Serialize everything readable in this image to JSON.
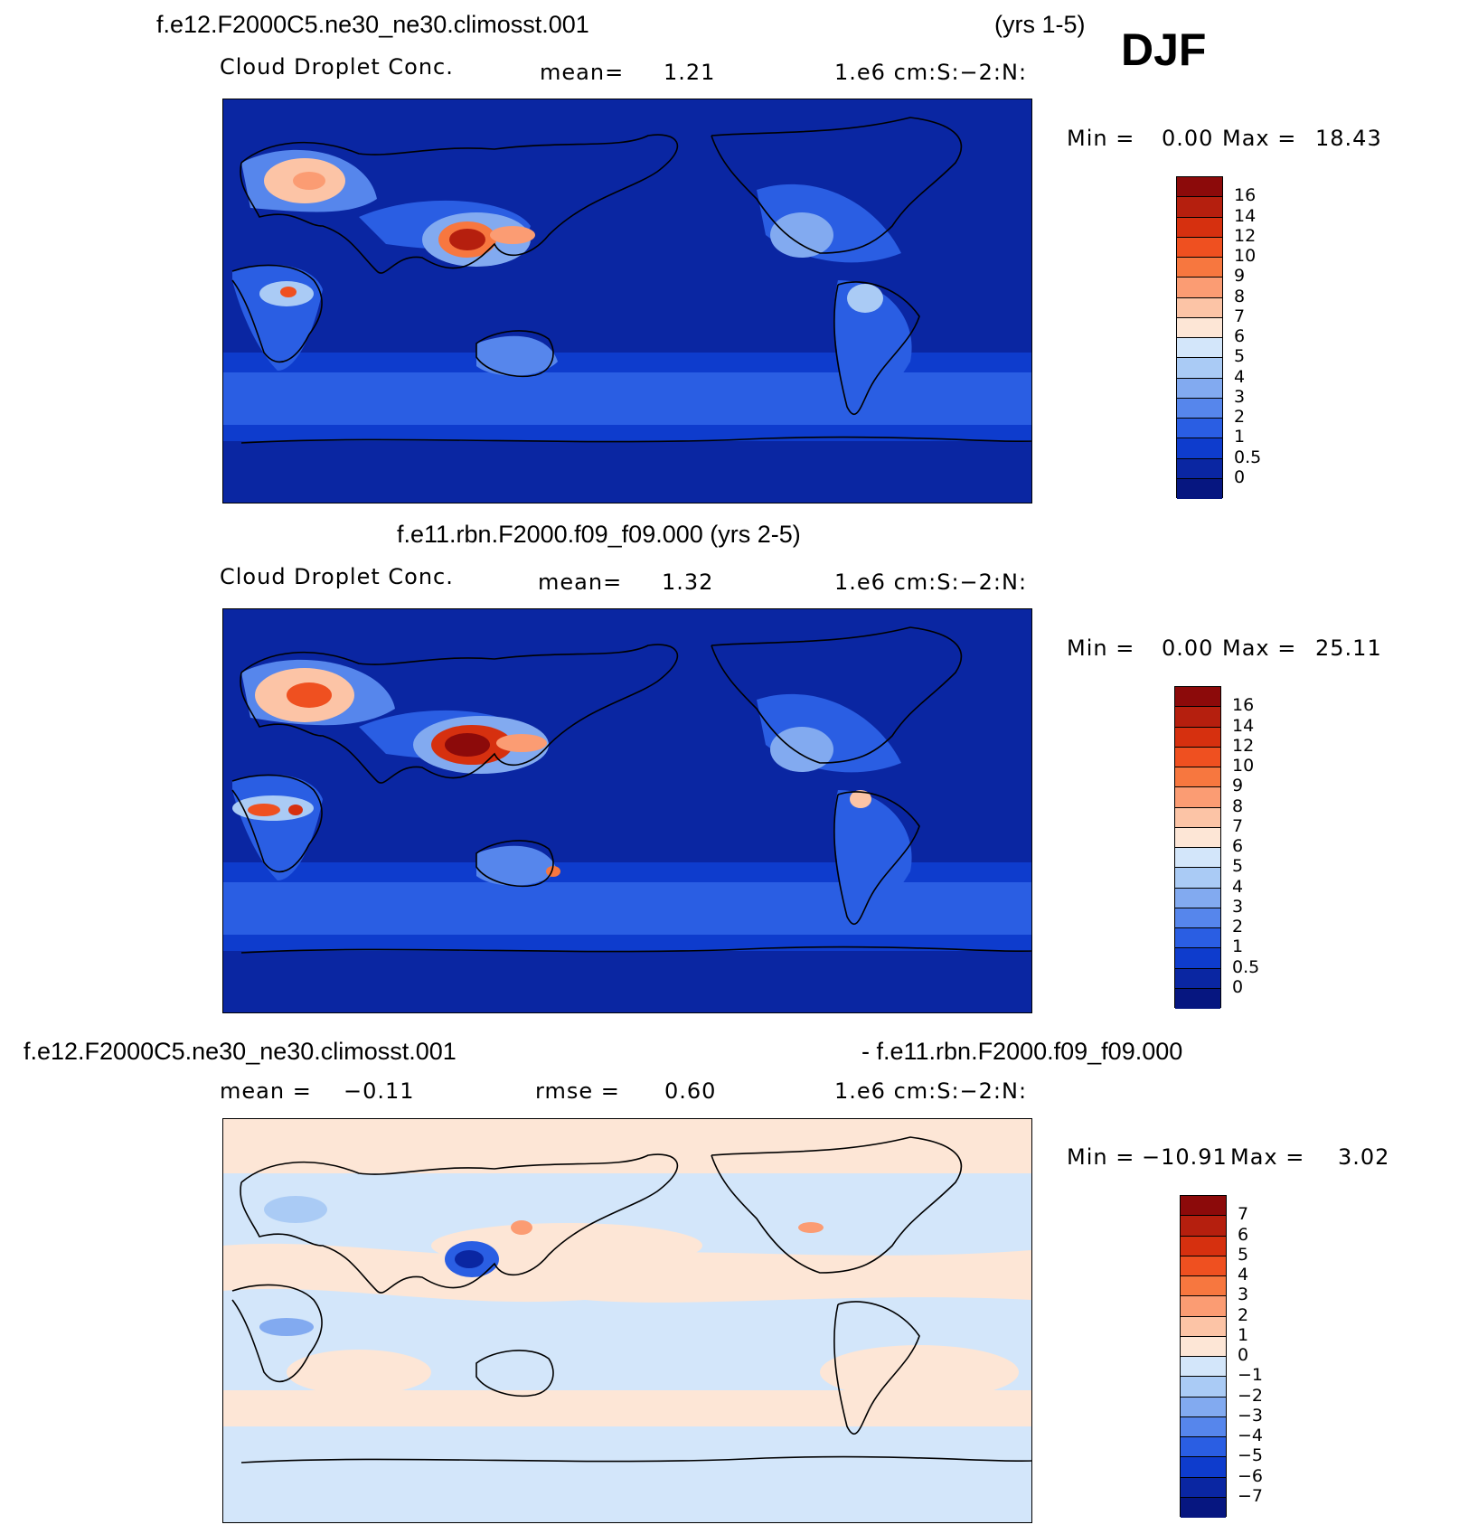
{
  "season": "DJF",
  "panel1": {
    "case": "f.e12.F2000C5.ne30_ne30.climosst.001",
    "years": "(yrs 1-5)",
    "variable": "Cloud Droplet Conc.",
    "mean_label": "mean=",
    "mean_value": "1.21",
    "units": "1.e6 cm:S:−2:N:",
    "min_label": "Min =",
    "min_value": "0.00",
    "max_label": "Max =",
    "max_value": "18.43",
    "levels": [
      "16",
      "14",
      "12",
      "10",
      "9",
      "8",
      "7",
      "6",
      "5",
      "4",
      "3",
      "2",
      "1",
      "0.5",
      "0"
    ],
    "colors": [
      "#8c0a0a",
      "#b51f0e",
      "#d6300f",
      "#ef5020",
      "#f7773f",
      "#fb9c73",
      "#fcc4a6",
      "#fde6d6",
      "#d3e6fa",
      "#aacbf5",
      "#82aaf0",
      "#5686ec",
      "#2a5ee3",
      "#0e3ccd",
      "#0a26a2",
      "#061680"
    ]
  },
  "panel2": {
    "case_years": "f.e11.rbn.F2000.f09_f09.000 (yrs 2-5)",
    "variable": "Cloud Droplet Conc.",
    "mean_label": "mean=",
    "mean_value": "1.32",
    "units": "1.e6 cm:S:−2:N:",
    "min_label": "Min =",
    "min_value": "0.00",
    "max_label": "Max =",
    "max_value": "25.11",
    "levels": [
      "16",
      "14",
      "12",
      "10",
      "9",
      "8",
      "7",
      "6",
      "5",
      "4",
      "3",
      "2",
      "1",
      "0.5",
      "0"
    ]
  },
  "panel3": {
    "case_a": "f.e12.F2000C5.ne30_ne30.climosst.001",
    "case_b": "- f.e11.rbn.F2000.f09_f09.000",
    "mean_label": "mean =",
    "mean_value": "−0.11",
    "rmse_label": "rmse =",
    "rmse_value": "0.60",
    "units": "1.e6 cm:S:−2:N:",
    "min_label": "Min =",
    "min_value": "−10.91",
    "max_label": "Max =",
    "max_value": "3.02",
    "levels": [
      "7",
      "6",
      "5",
      "4",
      "3",
      "2",
      "1",
      "0",
      "−1",
      "−2",
      "−3",
      "−4",
      "−5",
      "−6",
      "−7"
    ],
    "colors": [
      "#8c0a0a",
      "#b51f0e",
      "#d6300f",
      "#ef5020",
      "#f7773f",
      "#fb9c73",
      "#fcc4a6",
      "#fde6d6",
      "#d3e6fa",
      "#aacbf5",
      "#82aaf0",
      "#5686ec",
      "#2a5ee3",
      "#0e3ccd",
      "#0a26a2",
      "#061680"
    ]
  }
}
